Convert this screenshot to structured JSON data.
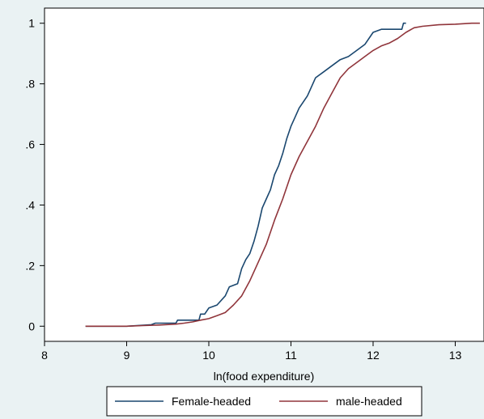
{
  "chart_data": {
    "type": "line",
    "title": "",
    "xlabel": "ln(food expenditure)",
    "ylabel": "",
    "xlim": [
      8,
      13.35
    ],
    "ylim": [
      -0.05,
      1.05
    ],
    "x_ticks": [
      8,
      9,
      10,
      11,
      12,
      13
    ],
    "x_tick_labels": [
      "8",
      "9",
      "10",
      "11",
      "12",
      "13"
    ],
    "y_ticks": [
      0,
      0.2,
      0.4,
      0.6,
      0.8,
      1
    ],
    "y_tick_labels": [
      "0",
      ".2",
      ".4",
      ".6",
      ".8",
      "1"
    ],
    "grid": false,
    "legend_position": "bottom",
    "series": [
      {
        "name": "Female-headed",
        "color": "#1a476f",
        "points": [
          [
            8.5,
            0.0
          ],
          [
            9.0,
            0.0
          ],
          [
            9.2,
            0.003
          ],
          [
            9.3,
            0.005
          ],
          [
            9.35,
            0.01
          ],
          [
            9.6,
            0.01
          ],
          [
            9.62,
            0.02
          ],
          [
            9.88,
            0.02
          ],
          [
            9.9,
            0.04
          ],
          [
            9.95,
            0.04
          ],
          [
            10.0,
            0.06
          ],
          [
            10.1,
            0.07
          ],
          [
            10.2,
            0.1
          ],
          [
            10.25,
            0.13
          ],
          [
            10.35,
            0.14
          ],
          [
            10.4,
            0.19
          ],
          [
            10.45,
            0.22
          ],
          [
            10.5,
            0.24
          ],
          [
            10.55,
            0.28
          ],
          [
            10.6,
            0.33
          ],
          [
            10.65,
            0.39
          ],
          [
            10.7,
            0.42
          ],
          [
            10.75,
            0.45
          ],
          [
            10.8,
            0.5
          ],
          [
            10.85,
            0.53
          ],
          [
            10.9,
            0.57
          ],
          [
            10.95,
            0.62
          ],
          [
            11.0,
            0.66
          ],
          [
            11.05,
            0.69
          ],
          [
            11.1,
            0.72
          ],
          [
            11.2,
            0.76
          ],
          [
            11.3,
            0.82
          ],
          [
            11.4,
            0.84
          ],
          [
            11.5,
            0.86
          ],
          [
            11.6,
            0.88
          ],
          [
            11.7,
            0.89
          ],
          [
            11.8,
            0.91
          ],
          [
            11.9,
            0.93
          ],
          [
            12.0,
            0.97
          ],
          [
            12.1,
            0.98
          ],
          [
            12.35,
            0.98
          ],
          [
            12.37,
            1.0
          ],
          [
            12.4,
            1.0
          ]
        ]
      },
      {
        "name": "male-headed",
        "color": "#90353b",
        "points": [
          [
            8.5,
            0.0
          ],
          [
            9.0,
            0.0
          ],
          [
            9.2,
            0.002
          ],
          [
            9.4,
            0.004
          ],
          [
            9.6,
            0.007
          ],
          [
            9.7,
            0.01
          ],
          [
            9.8,
            0.014
          ],
          [
            9.9,
            0.02
          ],
          [
            10.0,
            0.025
          ],
          [
            10.1,
            0.035
          ],
          [
            10.2,
            0.045
          ],
          [
            10.3,
            0.07
          ],
          [
            10.4,
            0.1
          ],
          [
            10.5,
            0.15
          ],
          [
            10.6,
            0.21
          ],
          [
            10.7,
            0.27
          ],
          [
            10.8,
            0.35
          ],
          [
            10.9,
            0.42
          ],
          [
            11.0,
            0.5
          ],
          [
            11.1,
            0.56
          ],
          [
            11.2,
            0.61
          ],
          [
            11.3,
            0.66
          ],
          [
            11.4,
            0.72
          ],
          [
            11.5,
            0.77
          ],
          [
            11.6,
            0.82
          ],
          [
            11.7,
            0.85
          ],
          [
            11.8,
            0.87
          ],
          [
            11.9,
            0.89
          ],
          [
            12.0,
            0.91
          ],
          [
            12.1,
            0.925
          ],
          [
            12.2,
            0.935
          ],
          [
            12.3,
            0.95
          ],
          [
            12.4,
            0.97
          ],
          [
            12.5,
            0.985
          ],
          [
            12.6,
            0.99
          ],
          [
            12.8,
            0.995
          ],
          [
            13.0,
            0.997
          ],
          [
            13.2,
            1.0
          ],
          [
            13.3,
            1.0
          ]
        ]
      }
    ]
  }
}
